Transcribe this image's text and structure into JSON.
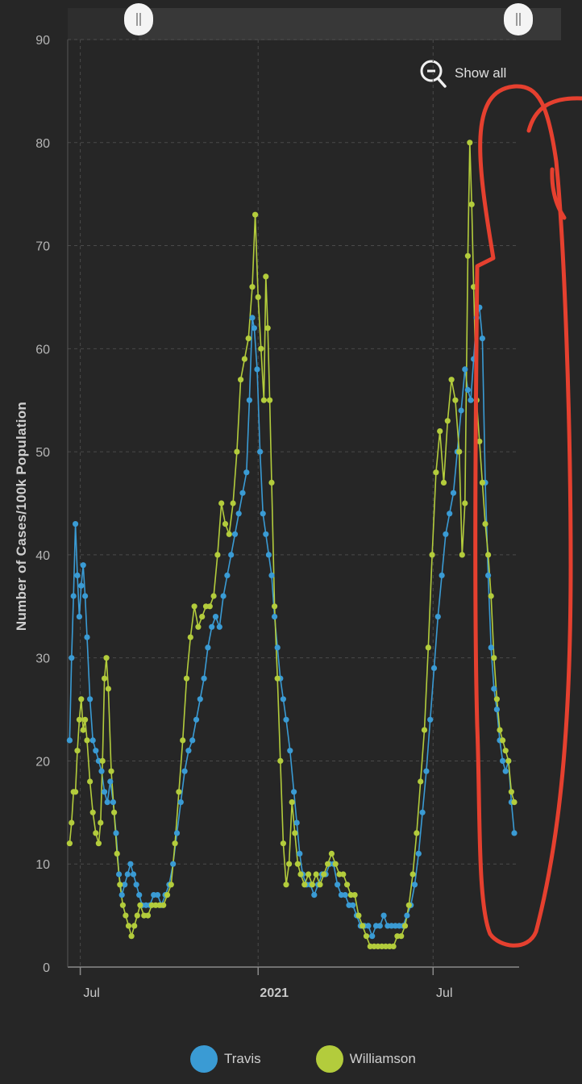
{
  "navigator": {
    "show_all_label": "Show all"
  },
  "colors": {
    "travis": "#3a9bd4",
    "williamson": "#b3cc3c",
    "annotation": "#e5402f",
    "background": "#262626"
  },
  "chart_data": {
    "type": "line",
    "ylabel": "Number of Cases/100k Population",
    "ylim": [
      0,
      90
    ],
    "yticks": [
      0,
      10,
      20,
      30,
      40,
      50,
      60,
      70,
      80,
      90
    ],
    "x_start": "2020-06-18",
    "x_end": "2021-09-28",
    "xticks": [
      {
        "label": "Jul",
        "date": "2020-07-01",
        "bold": false
      },
      {
        "label": "2021",
        "date": "2021-01-01",
        "bold": true
      },
      {
        "label": "Jul",
        "date": "2021-07-01",
        "bold": false
      }
    ],
    "grid": true,
    "legend_position": "bottom",
    "series": [
      {
        "name": "Travis",
        "color": "#3a9bd4",
        "points": [
          [
            "2020-06-20",
            22
          ],
          [
            "2020-06-22",
            30
          ],
          [
            "2020-06-24",
            36
          ],
          [
            "2020-06-26",
            43
          ],
          [
            "2020-06-28",
            38
          ],
          [
            "2020-06-30",
            34
          ],
          [
            "2020-07-02",
            37
          ],
          [
            "2020-07-04",
            39
          ],
          [
            "2020-07-06",
            36
          ],
          [
            "2020-07-08",
            32
          ],
          [
            "2020-07-11",
            26
          ],
          [
            "2020-07-14",
            22
          ],
          [
            "2020-07-17",
            21
          ],
          [
            "2020-07-20",
            20
          ],
          [
            "2020-07-23",
            19
          ],
          [
            "2020-07-26",
            17
          ],
          [
            "2020-07-29",
            16
          ],
          [
            "2020-08-01",
            18
          ],
          [
            "2020-08-04",
            16
          ],
          [
            "2020-08-07",
            13
          ],
          [
            "2020-08-10",
            9
          ],
          [
            "2020-08-13",
            7
          ],
          [
            "2020-08-16",
            8
          ],
          [
            "2020-08-19",
            9
          ],
          [
            "2020-08-22",
            10
          ],
          [
            "2020-08-25",
            9
          ],
          [
            "2020-08-28",
            8
          ],
          [
            "2020-08-31",
            7
          ],
          [
            "2020-09-03",
            6
          ],
          [
            "2020-09-07",
            6
          ],
          [
            "2020-09-11",
            6
          ],
          [
            "2020-09-15",
            7
          ],
          [
            "2020-09-19",
            7
          ],
          [
            "2020-09-23",
            6
          ],
          [
            "2020-09-27",
            7
          ],
          [
            "2020-10-01",
            8
          ],
          [
            "2020-10-05",
            10
          ],
          [
            "2020-10-09",
            13
          ],
          [
            "2020-10-13",
            16
          ],
          [
            "2020-10-17",
            19
          ],
          [
            "2020-10-21",
            21
          ],
          [
            "2020-10-25",
            22
          ],
          [
            "2020-10-29",
            24
          ],
          [
            "2020-11-02",
            26
          ],
          [
            "2020-11-06",
            28
          ],
          [
            "2020-11-10",
            31
          ],
          [
            "2020-11-14",
            33
          ],
          [
            "2020-11-18",
            34
          ],
          [
            "2020-11-22",
            33
          ],
          [
            "2020-11-26",
            36
          ],
          [
            "2020-11-30",
            38
          ],
          [
            "2020-12-04",
            40
          ],
          [
            "2020-12-08",
            42
          ],
          [
            "2020-12-12",
            44
          ],
          [
            "2020-12-16",
            46
          ],
          [
            "2020-12-20",
            48
          ],
          [
            "2020-12-23",
            55
          ],
          [
            "2020-12-26",
            63
          ],
          [
            "2020-12-28",
            62
          ],
          [
            "2020-12-31",
            58
          ],
          [
            "2021-01-03",
            50
          ],
          [
            "2021-01-06",
            44
          ],
          [
            "2021-01-09",
            42
          ],
          [
            "2021-01-12",
            40
          ],
          [
            "2021-01-15",
            38
          ],
          [
            "2021-01-18",
            34
          ],
          [
            "2021-01-21",
            31
          ],
          [
            "2021-01-24",
            28
          ],
          [
            "2021-01-27",
            26
          ],
          [
            "2021-01-30",
            24
          ],
          [
            "2021-02-03",
            21
          ],
          [
            "2021-02-07",
            17
          ],
          [
            "2021-02-10",
            14
          ],
          [
            "2021-02-13",
            11
          ],
          [
            "2021-02-16",
            9
          ],
          [
            "2021-02-20",
            8
          ],
          [
            "2021-02-24",
            8
          ],
          [
            "2021-02-28",
            7
          ],
          [
            "2021-03-04",
            8
          ],
          [
            "2021-03-08",
            9
          ],
          [
            "2021-03-12",
            9
          ],
          [
            "2021-03-16",
            10
          ],
          [
            "2021-03-20",
            10
          ],
          [
            "2021-03-24",
            8
          ],
          [
            "2021-03-28",
            7
          ],
          [
            "2021-04-01",
            7
          ],
          [
            "2021-04-05",
            6
          ],
          [
            "2021-04-09",
            6
          ],
          [
            "2021-04-13",
            5
          ],
          [
            "2021-04-17",
            4
          ],
          [
            "2021-04-21",
            4
          ],
          [
            "2021-04-25",
            4
          ],
          [
            "2021-04-29",
            3
          ],
          [
            "2021-05-03",
            4
          ],
          [
            "2021-05-07",
            4
          ],
          [
            "2021-05-11",
            5
          ],
          [
            "2021-05-15",
            4
          ],
          [
            "2021-05-19",
            4
          ],
          [
            "2021-05-23",
            4
          ],
          [
            "2021-05-27",
            4
          ],
          [
            "2021-05-31",
            4
          ],
          [
            "2021-06-04",
            5
          ],
          [
            "2021-06-08",
            6
          ],
          [
            "2021-06-12",
            8
          ],
          [
            "2021-06-16",
            11
          ],
          [
            "2021-06-20",
            15
          ],
          [
            "2021-06-24",
            19
          ],
          [
            "2021-06-28",
            24
          ],
          [
            "2021-07-02",
            29
          ],
          [
            "2021-07-06",
            34
          ],
          [
            "2021-07-10",
            38
          ],
          [
            "2021-07-14",
            42
          ],
          [
            "2021-07-18",
            44
          ],
          [
            "2021-07-22",
            46
          ],
          [
            "2021-07-26",
            50
          ],
          [
            "2021-07-30",
            54
          ],
          [
            "2021-08-03",
            58
          ],
          [
            "2021-08-06",
            56
          ],
          [
            "2021-08-09",
            55
          ],
          [
            "2021-08-12",
            59
          ],
          [
            "2021-08-15",
            63
          ],
          [
            "2021-08-18",
            64
          ],
          [
            "2021-08-21",
            61
          ],
          [
            "2021-08-24",
            47
          ],
          [
            "2021-08-27",
            38
          ],
          [
            "2021-08-30",
            31
          ],
          [
            "2021-09-02",
            27
          ],
          [
            "2021-09-05",
            25
          ],
          [
            "2021-09-08",
            22
          ],
          [
            "2021-09-11",
            20
          ],
          [
            "2021-09-14",
            19
          ],
          [
            "2021-09-17",
            20
          ],
          [
            "2021-09-20",
            16
          ],
          [
            "2021-09-23",
            13
          ]
        ]
      },
      {
        "name": "Williamson",
        "color": "#b3cc3c",
        "points": [
          [
            "2020-06-20",
            12
          ],
          [
            "2020-06-22",
            14
          ],
          [
            "2020-06-24",
            17
          ],
          [
            "2020-06-26",
            17
          ],
          [
            "2020-06-28",
            21
          ],
          [
            "2020-06-30",
            24
          ],
          [
            "2020-07-02",
            26
          ],
          [
            "2020-07-04",
            23
          ],
          [
            "2020-07-06",
            24
          ],
          [
            "2020-07-08",
            22
          ],
          [
            "2020-07-11",
            18
          ],
          [
            "2020-07-14",
            15
          ],
          [
            "2020-07-17",
            13
          ],
          [
            "2020-07-20",
            12
          ],
          [
            "2020-07-22",
            14
          ],
          [
            "2020-07-24",
            20
          ],
          [
            "2020-07-26",
            28
          ],
          [
            "2020-07-28",
            30
          ],
          [
            "2020-07-30",
            27
          ],
          [
            "2020-08-02",
            19
          ],
          [
            "2020-08-05",
            15
          ],
          [
            "2020-08-08",
            11
          ],
          [
            "2020-08-11",
            8
          ],
          [
            "2020-08-14",
            6
          ],
          [
            "2020-08-17",
            5
          ],
          [
            "2020-08-20",
            4
          ],
          [
            "2020-08-23",
            3
          ],
          [
            "2020-08-26",
            4
          ],
          [
            "2020-08-29",
            5
          ],
          [
            "2020-09-01",
            6
          ],
          [
            "2020-09-05",
            5
          ],
          [
            "2020-09-09",
            5
          ],
          [
            "2020-09-13",
            6
          ],
          [
            "2020-09-17",
            6
          ],
          [
            "2020-09-21",
            6
          ],
          [
            "2020-09-25",
            6
          ],
          [
            "2020-09-29",
            7
          ],
          [
            "2020-10-03",
            8
          ],
          [
            "2020-10-07",
            12
          ],
          [
            "2020-10-11",
            17
          ],
          [
            "2020-10-15",
            22
          ],
          [
            "2020-10-19",
            28
          ],
          [
            "2020-10-23",
            32
          ],
          [
            "2020-10-27",
            35
          ],
          [
            "2020-10-31",
            33
          ],
          [
            "2020-11-04",
            34
          ],
          [
            "2020-11-08",
            35
          ],
          [
            "2020-11-12",
            35
          ],
          [
            "2020-11-16",
            36
          ],
          [
            "2020-11-20",
            40
          ],
          [
            "2020-11-24",
            45
          ],
          [
            "2020-11-28",
            43
          ],
          [
            "2020-12-02",
            42
          ],
          [
            "2020-12-06",
            45
          ],
          [
            "2020-12-10",
            50
          ],
          [
            "2020-12-14",
            57
          ],
          [
            "2020-12-18",
            59
          ],
          [
            "2020-12-22",
            61
          ],
          [
            "2020-12-26",
            66
          ],
          [
            "2020-12-29",
            73
          ],
          [
            "2021-01-01",
            65
          ],
          [
            "2021-01-04",
            60
          ],
          [
            "2021-01-07",
            55
          ],
          [
            "2021-01-09",
            67
          ],
          [
            "2021-01-11",
            62
          ],
          [
            "2021-01-13",
            55
          ],
          [
            "2021-01-15",
            47
          ],
          [
            "2021-01-18",
            35
          ],
          [
            "2021-01-21",
            28
          ],
          [
            "2021-01-24",
            20
          ],
          [
            "2021-01-27",
            12
          ],
          [
            "2021-01-30",
            8
          ],
          [
            "2021-02-02",
            10
          ],
          [
            "2021-02-05",
            16
          ],
          [
            "2021-02-08",
            13
          ],
          [
            "2021-02-11",
            10
          ],
          [
            "2021-02-14",
            9
          ],
          [
            "2021-02-18",
            8
          ],
          [
            "2021-02-22",
            9
          ],
          [
            "2021-02-26",
            8
          ],
          [
            "2021-03-02",
            9
          ],
          [
            "2021-03-06",
            8
          ],
          [
            "2021-03-10",
            9
          ],
          [
            "2021-03-14",
            10
          ],
          [
            "2021-03-18",
            11
          ],
          [
            "2021-03-22",
            10
          ],
          [
            "2021-03-26",
            9
          ],
          [
            "2021-03-30",
            9
          ],
          [
            "2021-04-03",
            8
          ],
          [
            "2021-04-07",
            7
          ],
          [
            "2021-04-11",
            7
          ],
          [
            "2021-04-15",
            5
          ],
          [
            "2021-04-19",
            4
          ],
          [
            "2021-04-23",
            3
          ],
          [
            "2021-04-27",
            2
          ],
          [
            "2021-05-01",
            2
          ],
          [
            "2021-05-05",
            2
          ],
          [
            "2021-05-09",
            2
          ],
          [
            "2021-05-13",
            2
          ],
          [
            "2021-05-17",
            2
          ],
          [
            "2021-05-21",
            2
          ],
          [
            "2021-05-25",
            3
          ],
          [
            "2021-05-29",
            3
          ],
          [
            "2021-06-02",
            4
          ],
          [
            "2021-06-06",
            6
          ],
          [
            "2021-06-10",
            9
          ],
          [
            "2021-06-14",
            13
          ],
          [
            "2021-06-18",
            18
          ],
          [
            "2021-06-22",
            23
          ],
          [
            "2021-06-26",
            31
          ],
          [
            "2021-06-30",
            40
          ],
          [
            "2021-07-04",
            48
          ],
          [
            "2021-07-08",
            52
          ],
          [
            "2021-07-12",
            47
          ],
          [
            "2021-07-16",
            53
          ],
          [
            "2021-07-20",
            57
          ],
          [
            "2021-07-24",
            55
          ],
          [
            "2021-07-28",
            50
          ],
          [
            "2021-07-31",
            40
          ],
          [
            "2021-08-03",
            45
          ],
          [
            "2021-08-06",
            69
          ],
          [
            "2021-08-08",
            80
          ],
          [
            "2021-08-10",
            74
          ],
          [
            "2021-08-12",
            66
          ],
          [
            "2021-08-15",
            55
          ],
          [
            "2021-08-18",
            51
          ],
          [
            "2021-08-21",
            47
          ],
          [
            "2021-08-24",
            43
          ],
          [
            "2021-08-27",
            40
          ],
          [
            "2021-08-30",
            36
          ],
          [
            "2021-09-02",
            30
          ],
          [
            "2021-09-05",
            26
          ],
          [
            "2021-09-08",
            23
          ],
          [
            "2021-09-11",
            22
          ],
          [
            "2021-09-14",
            21
          ],
          [
            "2021-09-17",
            20
          ],
          [
            "2021-09-20",
            17
          ],
          [
            "2021-09-23",
            16
          ]
        ]
      }
    ]
  }
}
